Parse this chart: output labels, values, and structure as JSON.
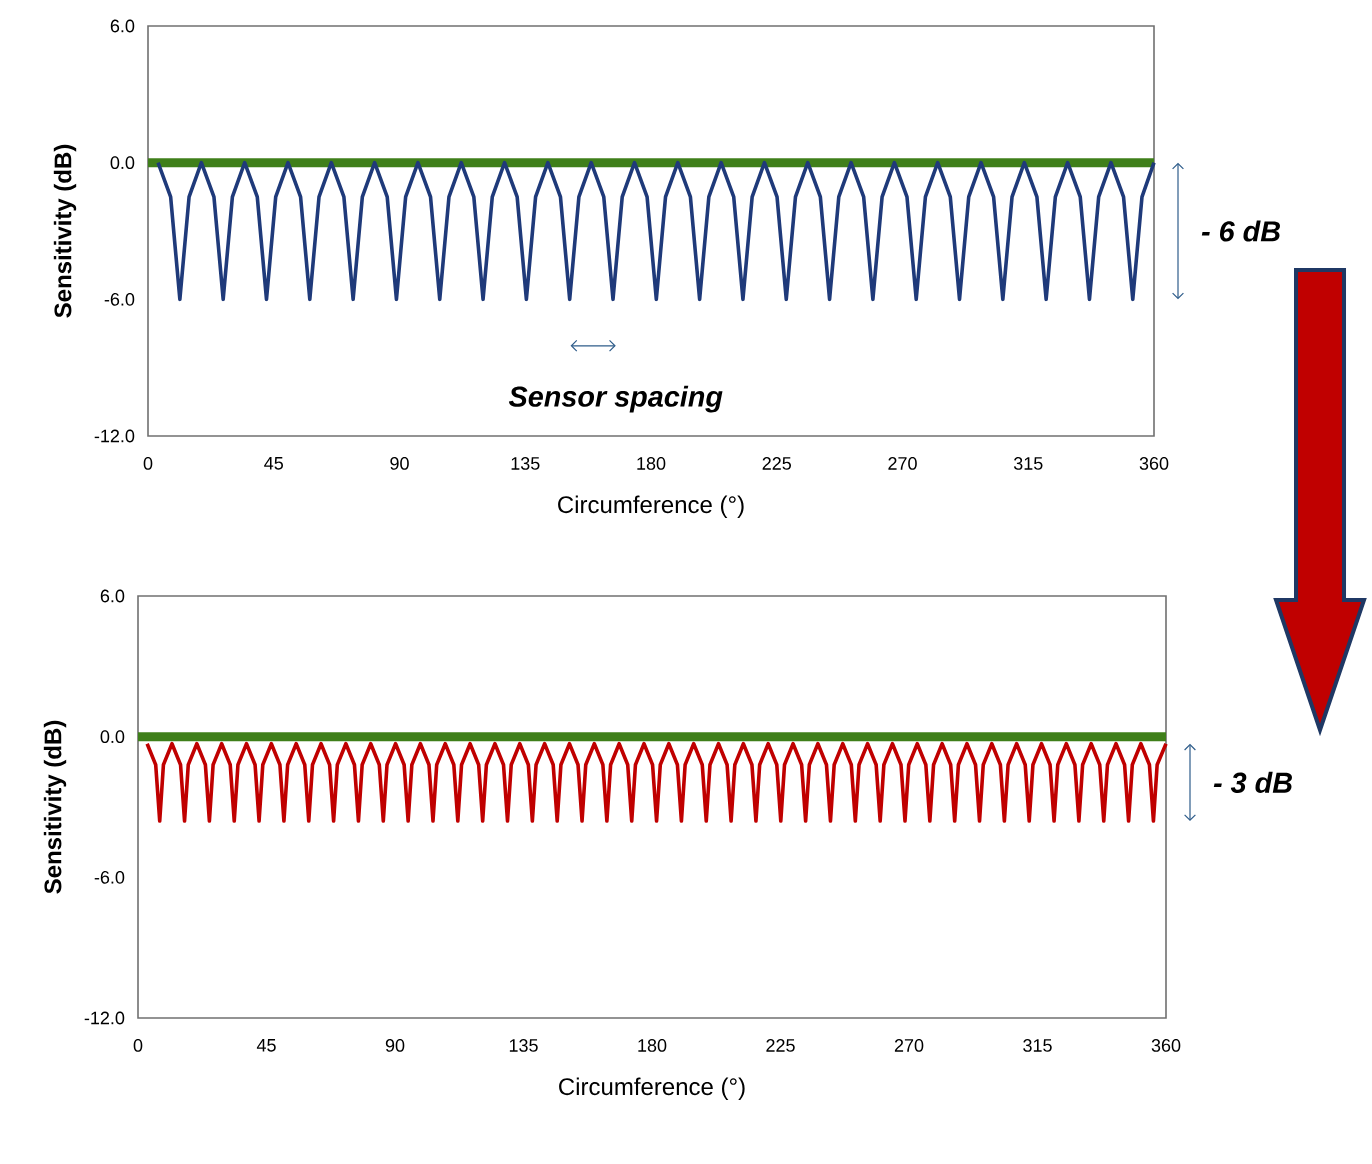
{
  "chart_data": [
    {
      "type": "line",
      "xlabel": "Circumference (°)",
      "ylabel": "Sensitivity (dB)",
      "xlim": [
        0,
        360
      ],
      "ylim": [
        -12,
        6
      ],
      "xticks": [
        0,
        45,
        90,
        135,
        180,
        225,
        270,
        315,
        360
      ],
      "yticks": [
        {
          "value": -12,
          "label": "-12.0"
        },
        {
          "value": -6,
          "label": "-6.0"
        },
        {
          "value": 0,
          "label": "0.0"
        },
        {
          "value": 6,
          "label": "6.0"
        }
      ],
      "marker": "none",
      "series": [
        {
          "color": "#1f3a7a",
          "x": [
            3.6,
            8.1,
            11.4,
            14.7,
            19.1,
            23.6,
            26.9,
            30.2,
            34.6,
            39.1,
            42.4,
            45.7,
            50.1,
            54.6,
            57.9,
            61.2,
            65.6,
            70.1,
            73.4,
            76.7,
            81.1,
            85.6,
            88.9,
            92.2,
            96.6,
            101.1,
            104.4,
            107.7,
            112.1,
            116.6,
            119.9,
            123.2,
            127.6,
            132.1,
            135.4,
            138.7,
            143.1,
            147.6,
            150.9,
            154.2,
            158.6,
            163.1,
            166.4,
            169.7,
            174.1,
            178.6,
            181.9,
            185.2,
            189.6,
            194.1,
            197.4,
            200.7,
            205.1,
            209.6,
            212.9,
            216.2,
            220.6,
            225.1,
            228.4,
            231.7,
            236.1,
            240.6,
            243.9,
            247.2,
            251.6,
            256.1,
            259.4,
            262.7,
            267.1,
            271.6,
            274.9,
            278.2,
            282.6,
            287.1,
            290.4,
            293.7,
            298.1,
            302.6,
            305.9,
            309.2,
            313.6,
            318.1,
            321.4,
            324.7,
            329.1,
            333.6,
            336.9,
            340.2,
            344.6,
            349.1,
            352.4,
            355.7,
            360
          ],
          "values": [
            0,
            -1.5,
            -6,
            -1.5,
            0,
            -1.5,
            -6,
            -1.5,
            0,
            -1.5,
            -6,
            -1.5,
            0,
            -1.5,
            -6,
            -1.5,
            0,
            -1.5,
            -6,
            -1.5,
            0,
            -1.5,
            -6,
            -1.5,
            0,
            -1.5,
            -6,
            -1.5,
            0,
            -1.5,
            -6,
            -1.5,
            0,
            -1.5,
            -6,
            -1.5,
            0,
            -1.5,
            -6,
            -1.5,
            0,
            -1.5,
            -6,
            -1.5,
            0,
            -1.5,
            -6,
            -1.5,
            0,
            -1.5,
            -6,
            -1.5,
            0,
            -1.5,
            -6,
            -1.5,
            0,
            -1.5,
            -6,
            -1.5,
            0,
            -1.5,
            -6,
            -1.5,
            0,
            -1.5,
            -6,
            -1.5,
            0,
            -1.5,
            -6,
            -1.5,
            0,
            -1.5,
            -6,
            -1.5,
            0,
            -1.5,
            -6,
            -1.5,
            0,
            -1.5,
            -6,
            -1.5,
            0,
            -1.5,
            -6,
            -1.5,
            0,
            -1.5,
            -6,
            -1.5,
            0
          ]
        }
      ],
      "ref_lines": [
        {
          "axis": "y",
          "value": 0,
          "color": "#3f7f1a"
        }
      ],
      "annotations": [
        "Sensor spacing",
        "- 6 dB"
      ]
    },
    {
      "type": "line",
      "xlabel": "Circumference (°)",
      "ylabel": "Sensitivity (dB)",
      "xlim": [
        0,
        360
      ],
      "ylim": [
        -12,
        6
      ],
      "xticks": [
        0,
        45,
        90,
        135,
        180,
        225,
        270,
        315,
        360
      ],
      "yticks": [
        {
          "value": -12,
          "label": "-12.0"
        },
        {
          "value": -6,
          "label": "-6.0"
        },
        {
          "value": 0,
          "label": "0.0"
        },
        {
          "value": 6,
          "label": "6.0"
        }
      ],
      "marker": "none",
      "series": [
        {
          "color": "#c00000",
          "x": [
            3.2,
            6.2,
            7.6,
            8.9,
            11.9,
            14.9,
            16.3,
            17.6,
            20.6,
            23.6,
            25,
            26.3,
            29.3,
            32.3,
            33.7,
            35,
            38,
            41,
            42.4,
            43.7,
            46.7,
            49.7,
            51.1,
            52.4,
            55.4,
            58.4,
            59.8,
            61.1,
            64.1,
            67.1,
            68.5,
            69.8,
            72.8,
            75.8,
            77.2,
            78.5,
            81.5,
            84.5,
            85.9,
            87.2,
            90.2,
            93.2,
            94.6,
            95.9,
            98.9,
            101.9,
            103.3,
            104.6,
            107.6,
            110.6,
            112,
            113.3,
            116.3,
            119.3,
            120.7,
            122,
            125,
            128,
            129.4,
            130.7,
            133.7,
            136.7,
            138.1,
            139.4,
            142.4,
            145.4,
            146.8,
            148.1,
            151.1,
            154.1,
            155.5,
            156.8,
            159.8,
            162.8,
            164.2,
            165.5,
            168.5,
            171.5,
            172.9,
            174.2,
            177.2,
            180.2,
            181.6,
            182.9,
            185.9,
            188.9,
            190.3,
            191.6,
            194.6,
            197.6,
            199,
            200.3,
            203.3,
            206.3,
            207.7,
            209,
            212,
            215,
            216.4,
            217.7,
            220.7,
            223.7,
            225.1,
            226.4,
            229.4,
            232.4,
            233.8,
            235.1,
            238.1,
            241.1,
            242.5,
            243.8,
            246.8,
            249.8,
            251.2,
            252.5,
            255.5,
            258.5,
            259.9,
            261.2,
            264.2,
            267.2,
            268.6,
            269.9,
            272.9,
            275.9,
            277.3,
            278.6,
            281.6,
            284.6,
            286,
            287.3,
            290.3,
            293.3,
            294.7,
            296,
            299,
            302,
            303.4,
            304.7,
            307.7,
            310.7,
            312.1,
            313.4,
            316.4,
            319.4,
            320.8,
            322.1,
            325.1,
            328.1,
            329.5,
            330.8,
            333.8,
            336.8,
            338.2,
            339.5,
            342.5,
            345.5,
            346.9,
            348.2,
            351.2,
            354.2,
            355.6,
            356.9,
            360
          ],
          "values": [
            -0.3,
            -1.2,
            -3.6,
            -1.2,
            -0.3,
            -1.2,
            -3.6,
            -1.2,
            -0.3,
            -1.2,
            -3.6,
            -1.2,
            -0.3,
            -1.2,
            -3.6,
            -1.2,
            -0.3,
            -1.2,
            -3.6,
            -1.2,
            -0.3,
            -1.2,
            -3.6,
            -1.2,
            -0.3,
            -1.2,
            -3.6,
            -1.2,
            -0.3,
            -1.2,
            -3.6,
            -1.2,
            -0.3,
            -1.2,
            -3.6,
            -1.2,
            -0.3,
            -1.2,
            -3.6,
            -1.2,
            -0.3,
            -1.2,
            -3.6,
            -1.2,
            -0.3,
            -1.2,
            -3.6,
            -1.2,
            -0.3,
            -1.2,
            -3.6,
            -1.2,
            -0.3,
            -1.2,
            -3.6,
            -1.2,
            -0.3,
            -1.2,
            -3.6,
            -1.2,
            -0.3,
            -1.2,
            -3.6,
            -1.2,
            -0.3,
            -1.2,
            -3.6,
            -1.2,
            -0.3,
            -1.2,
            -3.6,
            -1.2,
            -0.3,
            -1.2,
            -3.6,
            -1.2,
            -0.3,
            -1.2,
            -3.6,
            -1.2,
            -0.3,
            -1.2,
            -3.6,
            -1.2,
            -0.3,
            -1.2,
            -3.6,
            -1.2,
            -0.3,
            -1.2,
            -3.6,
            -1.2,
            -0.3,
            -1.2,
            -3.6,
            -1.2,
            -0.3,
            -1.2,
            -3.6,
            -1.2,
            -0.3,
            -1.2,
            -3.6,
            -1.2,
            -0.3,
            -1.2,
            -3.6,
            -1.2,
            -0.3,
            -1.2,
            -3.6,
            -1.2,
            -0.3,
            -1.2,
            -3.6,
            -1.2,
            -0.3,
            -1.2,
            -3.6,
            -1.2,
            -0.3,
            -1.2,
            -3.6,
            -1.2,
            -0.3,
            -1.2,
            -3.6,
            -1.2,
            -0.3,
            -1.2,
            -3.6,
            -1.2,
            -0.3,
            -1.2,
            -3.6,
            -1.2,
            -0.3,
            -1.2,
            -3.6,
            -1.2,
            -0.3,
            -1.2,
            -3.6,
            -1.2,
            -0.3,
            -1.2,
            -3.6,
            -1.2,
            -0.3,
            -1.2,
            -3.6,
            -1.2,
            -0.3,
            -1.2,
            -3.6,
            -1.2,
            -0.3,
            -1.2,
            -3.6,
            -1.2,
            -0.3,
            -1.2,
            -3.6,
            -1.2,
            -0.3
          ]
        }
      ],
      "ref_lines": [
        {
          "axis": "y",
          "value": 0,
          "color": "#3f7f1a"
        }
      ],
      "annotations": [
        "- 3 dB"
      ]
    }
  ]
}
